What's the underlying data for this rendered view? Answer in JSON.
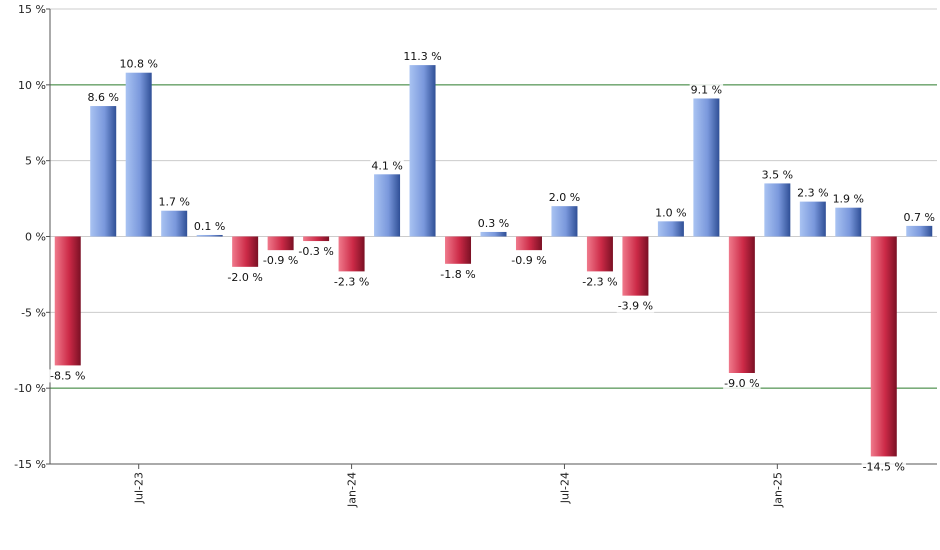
{
  "chart_data": {
    "type": "bar",
    "title": "",
    "xlabel": "",
    "ylabel": "",
    "ylim": [
      -15,
      15
    ],
    "yticks": [
      15,
      10,
      5,
      0,
      -5,
      -10,
      -15
    ],
    "ytick_labels": [
      "15 %",
      "10 %",
      "5 %",
      "0 %",
      "-5 %",
      "-10 %",
      "-15 %"
    ],
    "gridlines": {
      "major": [
        10,
        -10
      ],
      "major_color": "#2a7a2a",
      "minor": [
        15,
        5,
        0,
        -5,
        -15
      ],
      "minor_color": "#cccccc"
    },
    "categories": [
      "2023-05",
      "2023-06",
      "2023-07",
      "2023-08",
      "2023-09",
      "2023-10",
      "2023-11",
      "2023-12",
      "2024-01",
      "2024-02",
      "2024-03",
      "2024-04",
      "2024-05",
      "2024-06",
      "2024-07",
      "2024-08",
      "2024-09",
      "2024-10",
      "2024-11",
      "2024-12",
      "2025-01",
      "2025-02",
      "2025-03",
      "2025-04",
      "2025-05"
    ],
    "values": [
      -8.5,
      8.6,
      10.8,
      1.7,
      0.1,
      -2.0,
      -0.9,
      -0.3,
      -2.3,
      4.1,
      11.3,
      -1.8,
      0.3,
      -0.9,
      2.0,
      -2.3,
      -3.9,
      1.0,
      9.1,
      -9.0,
      3.5,
      2.3,
      1.9,
      -14.5,
      0.7
    ],
    "value_labels": [
      "-8.5 %",
      "8.6 %",
      "10.8 %",
      "1.7 %",
      "0.1 %",
      "-2.0 %",
      "-0.9 %",
      "-0.3 %",
      "-2.3 %",
      "4.1 %",
      "11.3 %",
      "-1.8 %",
      "0.3 %",
      "-0.9 %",
      "2.0 %",
      "-2.3 %",
      "-3.9 %",
      "1.0 %",
      "9.1 %",
      "-9.0 %",
      "3.5 %",
      "2.3 %",
      "1.9 %",
      "-14.5 %",
      "0.7 %"
    ],
    "xticks": [
      {
        "label": "Jul-23",
        "category_index": 2
      },
      {
        "label": "Jan-24",
        "category_index": 8
      },
      {
        "label": "Jul-24",
        "category_index": 14
      },
      {
        "label": "Jan-25",
        "category_index": 20
      }
    ],
    "colors": {
      "positive": "#6f8fd9",
      "negative": "#cc2a47"
    },
    "grid": true
  }
}
